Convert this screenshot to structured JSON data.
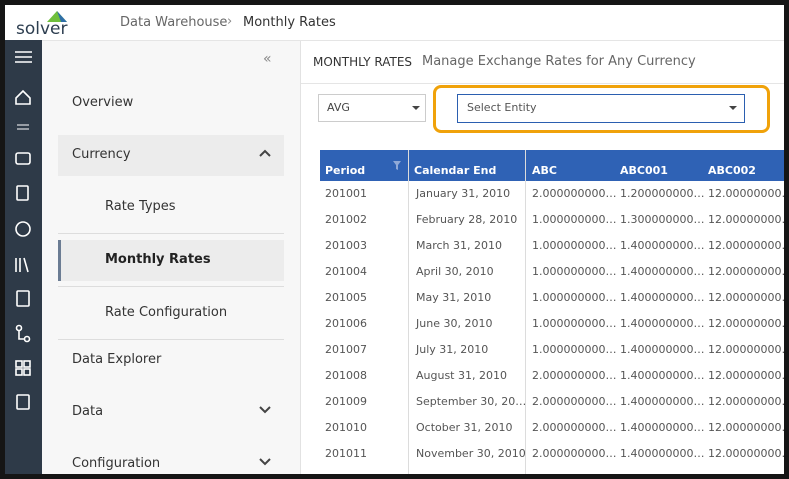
{
  "header": {
    "logo": "solver",
    "breadcrumb": [
      "Data Warehouse",
      "Monthly Rates"
    ]
  },
  "sidebar": {
    "items": [
      {
        "label": "Overview"
      },
      {
        "label": "Currency"
      },
      {
        "label": "Rate Types"
      },
      {
        "label": "Monthly Rates"
      },
      {
        "label": "Rate Configuration"
      },
      {
        "label": "Data Explorer"
      },
      {
        "label": "Data"
      },
      {
        "label": "Configuration"
      }
    ]
  },
  "page": {
    "title": "MONTHLY RATES",
    "subtitle": "Manage Exchange Rates for Any Currency",
    "rate_type": "AVG",
    "entity_placeholder": "Select Entity"
  },
  "table": {
    "columns": [
      "Period",
      "Calendar End",
      "ABC",
      "ABC001",
      "ABC002"
    ],
    "rows": [
      [
        "201001",
        "January 31, 2010",
        "2.000000000…",
        "1.200000000…",
        "12.00000000…"
      ],
      [
        "201002",
        "February 28, 2010",
        "1.000000000…",
        "1.300000000…",
        "12.00000000…"
      ],
      [
        "201003",
        "March 31, 2010",
        "1.000000000…",
        "1.400000000…",
        "12.00000000…"
      ],
      [
        "201004",
        "April 30, 2010",
        "1.000000000…",
        "1.400000000…",
        "12.00000000…"
      ],
      [
        "201005",
        "May 31, 2010",
        "1.000000000…",
        "1.400000000…",
        "12.00000000…"
      ],
      [
        "201006",
        "June 30, 2010",
        "1.000000000…",
        "1.400000000…",
        "12.00000000…"
      ],
      [
        "201007",
        "July 31, 2010",
        "1.000000000…",
        "1.400000000…",
        "12.00000000…"
      ],
      [
        "201008",
        "August 31, 2010",
        "2.000000000…",
        "1.400000000…",
        "12.00000000…"
      ],
      [
        "201009",
        "September 30, 20…",
        "2.000000000…",
        "1.400000000…",
        "12.00000000…"
      ],
      [
        "201010",
        "October 31, 2010",
        "2.000000000…",
        "1.400000000…",
        "12.00000000…"
      ],
      [
        "201011",
        "November 30, 2010",
        "2.000000000…",
        "1.400000000…",
        "12.00000000…"
      ]
    ]
  }
}
